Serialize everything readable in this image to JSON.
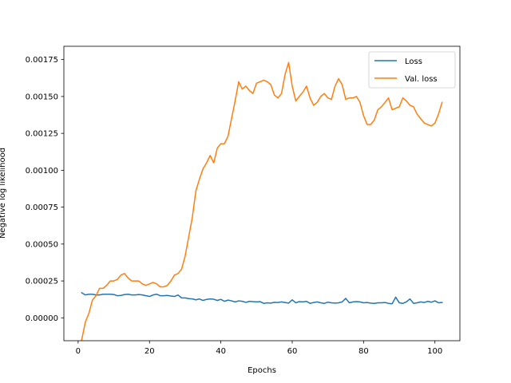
{
  "chart_data": {
    "type": "line",
    "title": "",
    "xlabel": "Epochs",
    "ylabel": "Negative log likelihood",
    "xlim": [
      -4,
      107
    ],
    "ylim": [
      -0.000155,
      0.00184
    ],
    "xticks": [
      0,
      20,
      40,
      60,
      80,
      100
    ],
    "xtick_labels": [
      "0",
      "20",
      "40",
      "60",
      "80",
      "100"
    ],
    "yticks": [
      0,
      0.00025,
      0.0005,
      0.00075,
      0.001,
      0.00125,
      0.0015,
      0.00175
    ],
    "ytick_labels": [
      "0.00000",
      "0.00025",
      "0.00050",
      "0.00075",
      "0.00100",
      "0.00125",
      "0.00150",
      "0.00175"
    ],
    "grid": false,
    "legend_position": "top-right",
    "series": [
      {
        "name": "Loss",
        "color": "#1f77b4",
        "x": [
          1,
          2,
          3,
          4,
          5,
          6,
          7,
          8,
          9,
          10,
          11,
          12,
          13,
          14,
          15,
          16,
          17,
          18,
          19,
          20,
          21,
          22,
          23,
          24,
          25,
          26,
          27,
          28,
          29,
          30,
          31,
          32,
          33,
          34,
          35,
          36,
          37,
          38,
          39,
          40,
          41,
          42,
          43,
          44,
          45,
          46,
          47,
          48,
          49,
          50,
          51,
          52,
          53,
          54,
          55,
          56,
          57,
          58,
          59,
          60,
          61,
          62,
          63,
          64,
          65,
          66,
          67,
          68,
          69,
          70,
          71,
          72,
          73,
          74,
          75,
          76,
          77,
          78,
          79,
          80,
          81,
          82,
          83,
          84,
          85,
          86,
          87,
          88,
          89,
          90,
          91,
          92,
          93,
          94,
          95,
          96,
          97,
          98,
          99,
          100,
          101,
          102
        ],
        "y": [
          0.00017,
          0.000155,
          0.00016,
          0.00016,
          0.000155,
          0.000155,
          0.00016,
          0.00016,
          0.00016,
          0.000158,
          0.00015,
          0.000152,
          0.000158,
          0.00016,
          0.000155,
          0.000155,
          0.000158,
          0.000155,
          0.00015,
          0.000145,
          0.000155,
          0.00016,
          0.00015,
          0.00015,
          0.000152,
          0.000148,
          0.000145,
          0.000155,
          0.000135,
          0.000135,
          0.00013,
          0.000128,
          0.000122,
          0.000128,
          0.000118,
          0.000125,
          0.000128,
          0.000126,
          0.000118,
          0.000125,
          0.000112,
          0.00012,
          0.000115,
          0.000108,
          0.000115,
          0.000112,
          0.000105,
          0.000112,
          0.00011,
          0.000108,
          0.00011,
          9.8e-05,
          0.000102,
          0.0001,
          0.000105,
          0.000104,
          0.000108,
          0.000104,
          0.0001,
          0.000122,
          0.000102,
          0.00011,
          0.000108,
          0.000112,
          9.8e-05,
          0.000104,
          0.000108,
          0.000102,
          9.8e-05,
          0.000106,
          0.000102,
          0.0001,
          0.000102,
          0.000108,
          0.000132,
          0.000102,
          0.000108,
          0.00011,
          0.000108,
          0.000102,
          0.000104,
          0.0001,
          9.8e-05,
          0.000102,
          0.000102,
          0.000104,
          9.8e-05,
          9.5e-05,
          0.00014,
          0.000102,
          9.8e-05,
          0.000108,
          0.000128,
          9.8e-05,
          0.000102,
          0.000108,
          0.000104,
          0.000112,
          0.000106,
          0.000115,
          0.000102,
          0.000104
        ]
      },
      {
        "name": "Val. loss",
        "color": "#ff7f0e",
        "x": [
          1,
          2,
          3,
          4,
          5,
          6,
          7,
          8,
          9,
          10,
          11,
          12,
          13,
          14,
          15,
          16,
          17,
          18,
          19,
          20,
          21,
          22,
          23,
          24,
          25,
          26,
          27,
          28,
          29,
          30,
          31,
          32,
          33,
          34,
          35,
          36,
          37,
          38,
          39,
          40,
          41,
          42,
          43,
          44,
          45,
          46,
          47,
          48,
          49,
          50,
          51,
          52,
          53,
          54,
          55,
          56,
          57,
          58,
          59,
          60,
          61,
          62,
          63,
          64,
          65,
          66,
          67,
          68,
          69,
          70,
          71,
          72,
          73,
          74,
          75,
          76,
          77,
          78,
          79,
          80,
          81,
          82,
          83,
          84,
          85,
          86,
          87,
          88,
          89,
          90,
          91,
          92,
          93,
          94,
          95,
          96,
          97,
          98,
          99,
          100,
          101,
          102
        ],
        "y": [
          -0.00015,
          -3e-05,
          3e-05,
          0.00012,
          0.00015,
          0.0002,
          0.0002,
          0.00022,
          0.00025,
          0.00025,
          0.00026,
          0.00029,
          0.0003,
          0.00027,
          0.00025,
          0.00025,
          0.00025,
          0.00023,
          0.00022,
          0.00023,
          0.00024,
          0.00023,
          0.00021,
          0.00021,
          0.00022,
          0.00025,
          0.00029,
          0.0003,
          0.00033,
          0.00042,
          0.00055,
          0.00068,
          0.00086,
          0.00094,
          0.00101,
          0.00105,
          0.0011,
          0.00105,
          0.00115,
          0.00118,
          0.00118,
          0.00123,
          0.00135,
          0.00147,
          0.0016,
          0.00155,
          0.00157,
          0.00154,
          0.00152,
          0.00159,
          0.0016,
          0.00161,
          0.0016,
          0.00158,
          0.00151,
          0.00149,
          0.00152,
          0.00165,
          0.00173,
          0.00157,
          0.00147,
          0.0015,
          0.00153,
          0.00157,
          0.00149,
          0.00144,
          0.00146,
          0.0015,
          0.00152,
          0.00149,
          0.00148,
          0.00157,
          0.00162,
          0.00158,
          0.00148,
          0.00149,
          0.00149,
          0.0015,
          0.00146,
          0.00137,
          0.00131,
          0.00131,
          0.00134,
          0.00141,
          0.00143,
          0.00146,
          0.00149,
          0.00141,
          0.00142,
          0.00143,
          0.00149,
          0.00147,
          0.00144,
          0.00143,
          0.00138,
          0.00135,
          0.00132,
          0.00131,
          0.0013,
          0.00132,
          0.00138,
          0.00146
        ]
      }
    ]
  }
}
